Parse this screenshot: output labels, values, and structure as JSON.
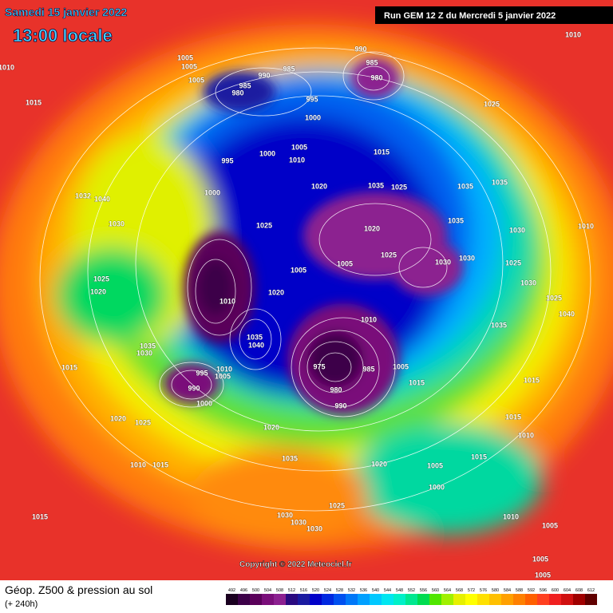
{
  "header": {
    "date": "Samedi 15 janvier 2022",
    "time": "13:00 locale",
    "run": "Run GEM 12 Z du Mercredi 5 janvier 2022"
  },
  "copyright": "Copyright © 2022 Meteociel.fr",
  "footer": {
    "title": "Géop. Z500 & pression au sol",
    "subtitle": "(+ 240h)"
  },
  "scale": {
    "values": [
      492,
      496,
      500,
      504,
      508,
      512,
      516,
      520,
      524,
      528,
      532,
      536,
      540,
      544,
      548,
      552,
      556,
      560,
      564,
      568,
      572,
      576,
      580,
      584,
      588,
      592,
      596,
      600,
      604,
      608,
      612
    ],
    "colors": [
      "#1a0020",
      "#3c0048",
      "#5a005a",
      "#7a0e7a",
      "#8c2090",
      "#2a0a80",
      "#1a1aa0",
      "#0000c8",
      "#0028e0",
      "#0050f0",
      "#0078f8",
      "#00a0ff",
      "#00c8ff",
      "#00e6f0",
      "#00f0c8",
      "#00e890",
      "#00dc50",
      "#50e600",
      "#a0f000",
      "#e6f000",
      "#ffff00",
      "#ffe000",
      "#ffc000",
      "#ffa000",
      "#ff8000",
      "#ff6000",
      "#ff4020",
      "#f02020",
      "#d01010",
      "#a00000",
      "#600000"
    ]
  },
  "isobar_labels": [
    1010,
    1005,
    1005,
    1005,
    985,
    980,
    990,
    985,
    990,
    985,
    980,
    995,
    1000,
    1010,
    1015,
    1025,
    1005,
    1000,
    995,
    1010,
    1015,
    1000,
    1020,
    1035,
    1025,
    1035,
    1035,
    1032,
    1040,
    1030,
    1035,
    1030,
    1010,
    1025,
    1020,
    1025,
    1005,
    1030,
    1030,
    1025,
    1025,
    1020,
    1005,
    1030,
    1010,
    1020,
    1025,
    1040,
    1035,
    1010,
    1035,
    1040,
    1035,
    1030,
    975,
    985,
    1005,
    1015,
    1010,
    995,
    1005,
    1015,
    1015,
    990,
    980,
    1000,
    990,
    1020,
    1025,
    1015,
    1020,
    1010,
    1010,
    1015,
    1035,
    1020,
    1015,
    1005,
    1000,
    1025,
    1015,
    1030,
    1030,
    1030,
    1010,
    1005,
    1005,
    1005
  ]
}
